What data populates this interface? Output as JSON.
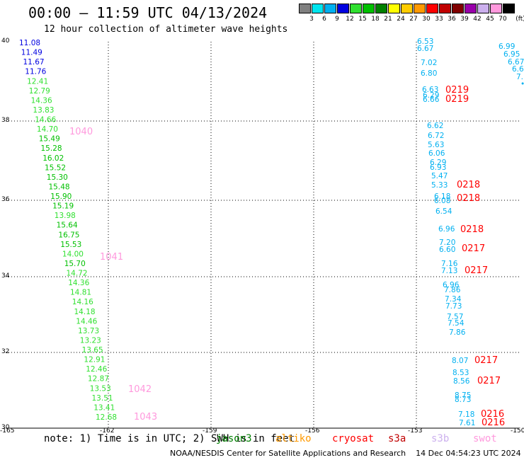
{
  "header": {
    "title": "00:00 — 11:59 UTC 04/13/2024",
    "subtitle": "12 hour collection of altimeter wave heights"
  },
  "legend": {
    "labels": [
      "3",
      "6",
      "9",
      "12",
      "15",
      "18",
      "21",
      "24",
      "27",
      "30",
      "33",
      "36",
      "39",
      "42",
      "45",
      "70"
    ],
    "unit": "(ft)",
    "colors": [
      "#808080",
      "#00e5ee",
      "#00b0f0",
      "#0000e0",
      "#30e030",
      "#00c000",
      "#008000",
      "#ffff00",
      "#ffcc00",
      "#ff9900",
      "#ff0000",
      "#c00000",
      "#800000",
      "#9900aa",
      "#ccb0ee",
      "#ff99dd",
      "#000000"
    ]
  },
  "axes": {
    "lat_labels": [
      "40",
      "38",
      "36",
      "34",
      "32",
      "30"
    ],
    "lon_labels": [
      "-165",
      "-162",
      "-159",
      "-156",
      "-153",
      "-150"
    ]
  },
  "tracks": {
    "left": [
      {
        "v": "11.08",
        "c": "#0000e0"
      },
      {
        "v": "11.49",
        "c": "#0000e0"
      },
      {
        "v": "11.67",
        "c": "#0000e0"
      },
      {
        "v": "11.76",
        "c": "#0000e0"
      },
      {
        "v": "12.41",
        "c": "#30e030"
      },
      {
        "v": "12.79",
        "c": "#30e030"
      },
      {
        "v": "14.36",
        "c": "#30e030"
      },
      {
        "v": "13.83",
        "c": "#30e030"
      },
      {
        "v": "14.66",
        "c": "#30e030"
      },
      {
        "v": "14.70",
        "c": "#30e030"
      },
      {
        "v": "15.49",
        "c": "#00c000"
      },
      {
        "v": "15.28",
        "c": "#00c000"
      },
      {
        "v": "16.02",
        "c": "#00c000"
      },
      {
        "v": "15.52",
        "c": "#00c000"
      },
      {
        "v": "15.30",
        "c": "#00c000"
      },
      {
        "v": "15.48",
        "c": "#00c000"
      },
      {
        "v": "15.90",
        "c": "#00c000"
      },
      {
        "v": "15.19",
        "c": "#00c000"
      },
      {
        "v": "13.98",
        "c": "#30e030"
      },
      {
        "v": "15.64",
        "c": "#00c000"
      },
      {
        "v": "16.75",
        "c": "#00c000"
      },
      {
        "v": "15.53",
        "c": "#00c000"
      },
      {
        "v": "14.00",
        "c": "#30e030"
      },
      {
        "v": "15.70",
        "c": "#00c000"
      },
      {
        "v": "14.72",
        "c": "#30e030"
      },
      {
        "v": "14.36",
        "c": "#30e030"
      },
      {
        "v": "14.81",
        "c": "#30e030"
      },
      {
        "v": "14.16",
        "c": "#30e030"
      },
      {
        "v": "14.18",
        "c": "#30e030"
      },
      {
        "v": "14.46",
        "c": "#30e030"
      },
      {
        "v": "13.73",
        "c": "#30e030"
      },
      {
        "v": "13.23",
        "c": "#30e030"
      },
      {
        "v": "13.65",
        "c": "#30e030"
      },
      {
        "v": "12.91",
        "c": "#30e030"
      },
      {
        "v": "12.46",
        "c": "#30e030"
      },
      {
        "v": "12.87",
        "c": "#30e030"
      },
      {
        "v": "13.53",
        "c": "#30e030"
      },
      {
        "v": "13.51",
        "c": "#30e030"
      },
      {
        "v": "13.41",
        "c": "#30e030"
      },
      {
        "v": "12.68",
        "c": "#30e030"
      }
    ],
    "left_times": [
      {
        "t": "1040",
        "c": "#ff99dd"
      },
      {
        "t": "1041",
        "c": "#ff99dd"
      },
      {
        "t": "1042",
        "c": "#ff99dd"
      },
      {
        "t": "1043",
        "c": "#ff99dd"
      }
    ],
    "right": [
      "6.53",
      "6.67",
      "7.02",
      "6.80",
      "6.63",
      "6.29",
      "6.66",
      "6.62",
      "6.72",
      "5.63",
      "6.06",
      "6.29",
      "6.93",
      "5.47",
      "5.33",
      "6.18",
      "6.08",
      "6.54",
      "6.96",
      "7.20",
      "6.60",
      "7.16",
      "7.13",
      "6.96",
      "7.86",
      "7.34",
      "7.73",
      "7.57",
      "7.54",
      "7.86",
      "8.07",
      "8.53",
      "8.56",
      "8.75",
      "8.73",
      "7.18",
      "7.61"
    ],
    "right_times": [
      "0219",
      "0219",
      "0218",
      "0218",
      "0218",
      "0217",
      "0217",
      "0217",
      "0217",
      "0216",
      "0216"
    ],
    "far_right": [
      "6.99",
      "6.95",
      "6.67",
      "6.6",
      "7."
    ],
    "right_color": "#00b0f0",
    "time_color": "#ff0000"
  },
  "footer": {
    "note": "note: 1) Time is in UTC; 2) SWH is in feet",
    "missions": [
      {
        "name": "jason3",
        "color": "#008000"
      },
      {
        "name": "altiko",
        "color": "#ff9900"
      },
      {
        "name": "cryosat",
        "color": "#ff0000"
      },
      {
        "name": "s3a",
        "color": "#c00000"
      },
      {
        "name": "s3b",
        "color": "#ccb0ee"
      },
      {
        "name": "swot",
        "color": "#ff99dd"
      }
    ],
    "credit": "NOAA/NESDIS Center for Satellite Applications and Research    14 Dec 04:54:23 UTC 2024"
  }
}
